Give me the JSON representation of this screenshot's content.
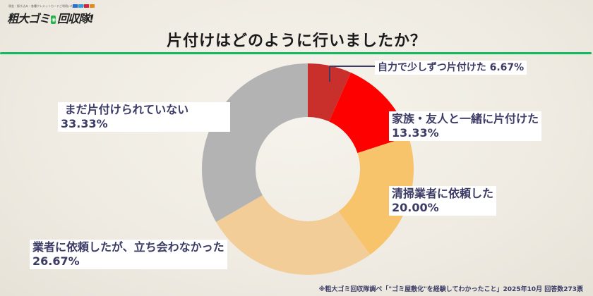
{
  "logo": {
    "tagline": "現金・振り込み・各種クレジットカードご利用いただけます",
    "brand": "粗大ゴミ",
    "brand_mark": "回収",
    "brand_tail": "回収隊!"
  },
  "title": "片付けはどのように行いましたか？",
  "footer": "※粗大ゴミ回収隊調べ「\"ゴミ屋敷化\"を経験してわかったこと」2025年10月 回答数273票",
  "labels": {
    "s1": {
      "name": "自力で少しずつ片付けた 6.67%"
    },
    "s2": {
      "name": "家族・友人と一緒に片付けた",
      "value": "13.33%"
    },
    "s3": {
      "name": "清掃業者に依頼した",
      "value": "20.00%"
    },
    "s4": {
      "name": "業者に依頼したが、立ち会わなかった",
      "value": "26.67%"
    },
    "s5": {
      "name": " まだ片付けられていない",
      "value": "33.33%"
    }
  },
  "chart_data": {
    "type": "pie",
    "subtype": "donut",
    "title": "片付けはどのように行いましたか？",
    "categories": [
      "自力で少しずつ片付けた",
      "家族・友人と一緒に片付けた",
      "清掃業者に依頼した",
      "業者に依頼したが、立ち会わなかった",
      "まだ片付けられていない"
    ],
    "values": [
      6.67,
      13.33,
      20.0,
      26.67,
      33.33
    ],
    "unit": "%",
    "colors": [
      "#c9302c",
      "#ff0000",
      "#f7c46c",
      "#f2cd98",
      "#b3b3b3"
    ],
    "start_angle": "12 o'clock",
    "direction": "clockwise",
    "legend": "none (direct labels)",
    "source_note": "※粗大ゴミ回収隊調べ「\"ゴミ屋敷化\"を経験してわかったこと」2025年10月 回答数273票"
  },
  "colors": {
    "accent_rule": "#13b85f",
    "label_text": "#3b3b66"
  }
}
